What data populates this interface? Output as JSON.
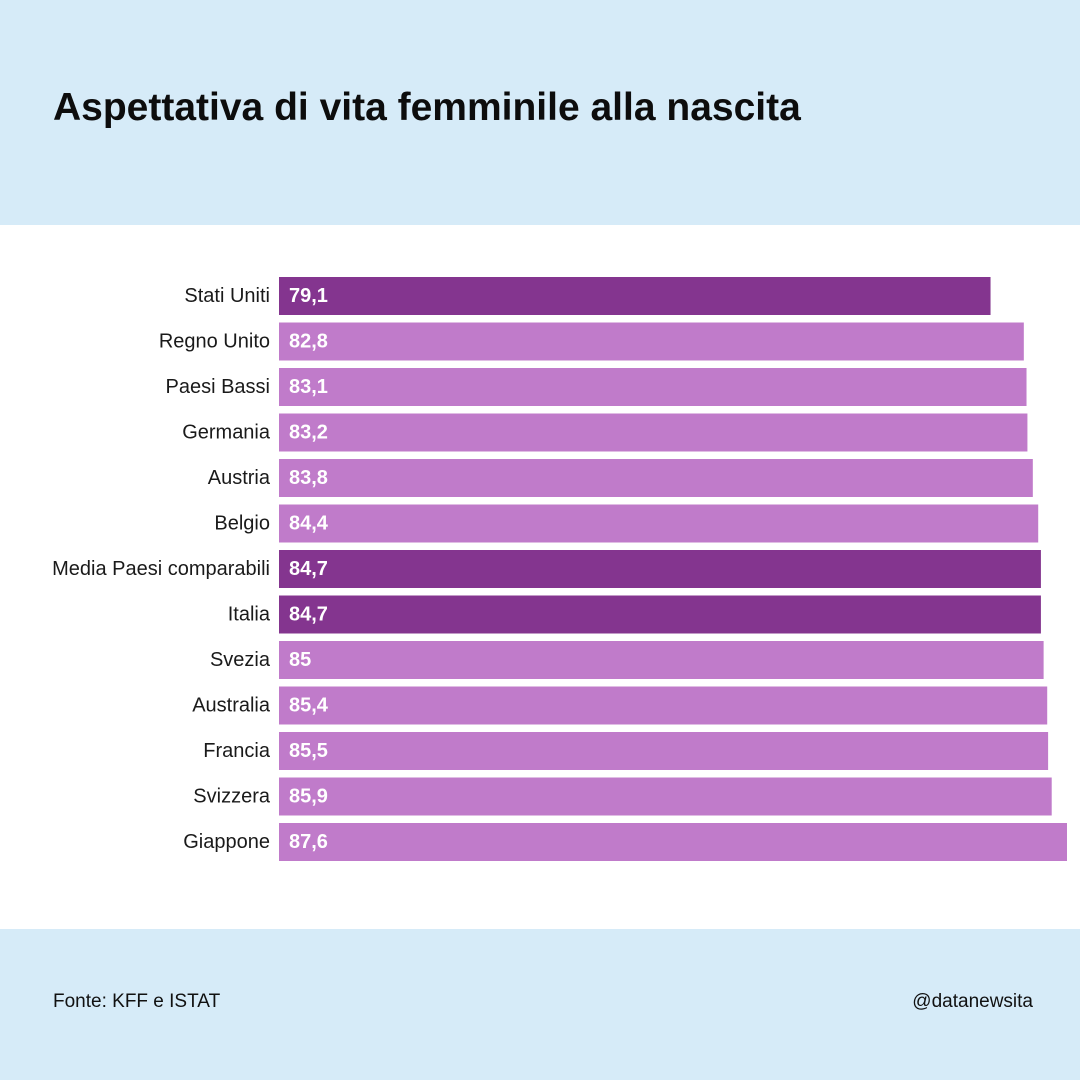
{
  "header": {
    "title": "Aspettativa di vita femminile alla nascita"
  },
  "footer": {
    "source": "Fonte: KFF e ISTAT",
    "handle": "@datanewsita"
  },
  "colors": {
    "background_band": "#d6ebf8",
    "bar_default": "#c07bca",
    "bar_highlight": "#84358f",
    "bar_label": "#ffffff",
    "category_label": "#1a1a1a"
  },
  "chart_data": {
    "type": "bar",
    "orientation": "horizontal",
    "title": "Aspettativa di vita femminile alla nascita",
    "xlabel": "",
    "ylabel": "",
    "categories": [
      "Stati Uniti",
      "Regno Unito",
      "Paesi Bassi",
      "Germania",
      "Austria",
      "Belgio",
      "Media Paesi comparabili",
      "Italia",
      "Svezia",
      "Australia",
      "Francia",
      "Svizzera",
      "Giappone"
    ],
    "values": [
      79.1,
      82.8,
      83.1,
      83.2,
      83.8,
      84.4,
      84.7,
      84.7,
      85,
      85.4,
      85.5,
      85.9,
      87.6
    ],
    "value_labels": [
      "79,1",
      "82,8",
      "83,1",
      "83,2",
      "83,8",
      "84,4",
      "84,7",
      "84,7",
      "85",
      "85,4",
      "85,5",
      "85,9",
      "87,6"
    ],
    "highlighted": [
      "Stati Uniti",
      "Media Paesi comparabili",
      "Italia"
    ],
    "xlim": [
      0,
      87.6
    ],
    "grid": false,
    "legend": "none"
  }
}
